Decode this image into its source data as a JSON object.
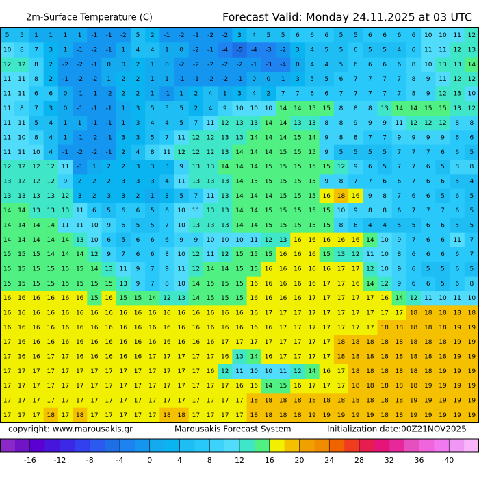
{
  "header": {
    "title": "2m-Surface Temperature (C)",
    "forecast": "Forecast Valid:  Monday 24.11.2025 at 03 UTC"
  },
  "grid": {
    "rows": [
      [
        5,
        5,
        1,
        1,
        1,
        1,
        -1,
        -1,
        -2,
        5,
        2,
        -1,
        -2,
        -1,
        -2,
        -2,
        3,
        4,
        5,
        5,
        6,
        6,
        6,
        5,
        5,
        6,
        6,
        6,
        6,
        10,
        10,
        11,
        12
      ],
      [
        10,
        8,
        7,
        3,
        1,
        -1,
        -2,
        -1,
        1,
        4,
        4,
        1,
        0,
        -2,
        -1,
        -4,
        -5,
        -4,
        -3,
        -2,
        3,
        4,
        5,
        5,
        6,
        5,
        5,
        4,
        6,
        11,
        11,
        12,
        13
      ],
      [
        12,
        12,
        8,
        2,
        -2,
        -2,
        -1,
        0,
        0,
        2,
        1,
        0,
        -2,
        -2,
        -2,
        -2,
        -2,
        -1,
        -3,
        -4,
        0,
        4,
        4,
        5,
        6,
        6,
        6,
        6,
        8,
        10,
        13,
        13,
        14
      ],
      [
        11,
        11,
        8,
        2,
        -1,
        -2,
        -2,
        1,
        2,
        2,
        1,
        1,
        -1,
        -1,
        -2,
        -2,
        -1,
        0,
        0,
        1,
        3,
        5,
        5,
        6,
        7,
        7,
        7,
        7,
        8,
        9,
        11,
        12,
        12
      ],
      [
        11,
        11,
        6,
        6,
        0,
        -1,
        -1,
        -2,
        2,
        2,
        1,
        -1,
        1,
        2,
        4,
        1,
        3,
        4,
        2,
        7,
        7,
        6,
        6,
        7,
        7,
        7,
        7,
        7,
        8,
        9,
        12,
        13,
        10
      ],
      [
        11,
        8,
        7,
        3,
        0,
        -1,
        -1,
        -1,
        1,
        3,
        5,
        5,
        5,
        2,
        4,
        9,
        10,
        10,
        10,
        14,
        14,
        15,
        15,
        8,
        8,
        8,
        13,
        14,
        14,
        15,
        15,
        13,
        12
      ],
      [
        11,
        11,
        5,
        4,
        1,
        1,
        -1,
        -1,
        1,
        3,
        4,
        4,
        5,
        7,
        11,
        12,
        13,
        13,
        14,
        14,
        13,
        13,
        8,
        8,
        9,
        9,
        9,
        11,
        12,
        12,
        12,
        8,
        8
      ],
      [
        11,
        10,
        8,
        4,
        1,
        -1,
        -2,
        -1,
        3,
        3,
        5,
        7,
        11,
        12,
        12,
        13,
        13,
        14,
        14,
        14,
        15,
        14,
        9,
        8,
        8,
        7,
        7,
        9,
        9,
        9,
        9,
        6,
        6
      ],
      [
        11,
        11,
        10,
        4,
        -1,
        -2,
        -2,
        -1,
        2,
        4,
        8,
        11,
        12,
        12,
        12,
        13,
        14,
        14,
        14,
        15,
        15,
        15,
        9,
        5,
        5,
        5,
        5,
        7,
        7,
        7,
        6,
        6,
        5
      ],
      [
        12,
        12,
        12,
        12,
        11,
        -1,
        1,
        2,
        2,
        3,
        3,
        3,
        9,
        13,
        13,
        14,
        14,
        14,
        15,
        15,
        15,
        15,
        15,
        12,
        9,
        6,
        5,
        7,
        7,
        6,
        5,
        8,
        8
      ],
      [
        13,
        12,
        12,
        12,
        9,
        2,
        2,
        2,
        3,
        3,
        3,
        4,
        11,
        13,
        13,
        13,
        14,
        15,
        15,
        15,
        15,
        15,
        9,
        8,
        7,
        7,
        6,
        6,
        7,
        6,
        6,
        5,
        4
      ],
      [
        13,
        13,
        13,
        13,
        12,
        3,
        2,
        3,
        3,
        2,
        1,
        3,
        5,
        7,
        11,
        13,
        14,
        14,
        14,
        15,
        15,
        15,
        16,
        18,
        16,
        9,
        8,
        7,
        6,
        6,
        5,
        6,
        5
      ],
      [
        14,
        14,
        13,
        13,
        13,
        11,
        6,
        5,
        6,
        6,
        5,
        6,
        10,
        11,
        13,
        13,
        14,
        14,
        15,
        15,
        15,
        15,
        15,
        10,
        9,
        8,
        8,
        6,
        7,
        7,
        7,
        6,
        5
      ],
      [
        14,
        14,
        14,
        14,
        11,
        11,
        10,
        9,
        6,
        5,
        5,
        7,
        10,
        13,
        13,
        13,
        14,
        14,
        15,
        15,
        15,
        15,
        15,
        8,
        6,
        4,
        4,
        5,
        5,
        6,
        6,
        5,
        5
      ],
      [
        14,
        14,
        14,
        14,
        14,
        13,
        10,
        6,
        5,
        6,
        6,
        6,
        9,
        9,
        10,
        10,
        10,
        11,
        12,
        13,
        16,
        16,
        16,
        16,
        16,
        14,
        10,
        9,
        7,
        6,
        6,
        11,
        7
      ],
      [
        15,
        15,
        15,
        14,
        14,
        14,
        12,
        9,
        7,
        6,
        6,
        8,
        10,
        12,
        11,
        12,
        15,
        15,
        15,
        16,
        16,
        16,
        15,
        13,
        12,
        11,
        10,
        8,
        6,
        6,
        6,
        6,
        7
      ],
      [
        15,
        15,
        15,
        15,
        15,
        15,
        14,
        13,
        11,
        9,
        7,
        9,
        11,
        12,
        14,
        14,
        15,
        15,
        16,
        16,
        16,
        16,
        16,
        17,
        17,
        12,
        10,
        9,
        6,
        5,
        5,
        6,
        5
      ],
      [
        15,
        15,
        15,
        15,
        15,
        15,
        15,
        15,
        13,
        9,
        7,
        8,
        10,
        14,
        15,
        15,
        15,
        16,
        16,
        16,
        16,
        16,
        17,
        17,
        16,
        14,
        12,
        9,
        6,
        6,
        5,
        6,
        8
      ],
      [
        16,
        16,
        16,
        16,
        16,
        16,
        15,
        16,
        15,
        15,
        14,
        12,
        13,
        14,
        15,
        15,
        15,
        16,
        16,
        16,
        16,
        17,
        17,
        17,
        17,
        17,
        16,
        14,
        12,
        11,
        10,
        11,
        10
      ],
      [
        16,
        16,
        16,
        16,
        16,
        16,
        16,
        16,
        16,
        16,
        16,
        16,
        16,
        16,
        16,
        16,
        16,
        16,
        17,
        17,
        17,
        17,
        17,
        17,
        17,
        17,
        17,
        17,
        18,
        18,
        18,
        18,
        18
      ],
      [
        16,
        16,
        16,
        16,
        16,
        16,
        16,
        16,
        16,
        16,
        16,
        16,
        16,
        16,
        16,
        16,
        16,
        16,
        16,
        17,
        17,
        17,
        17,
        17,
        17,
        17,
        18,
        18,
        18,
        18,
        18,
        19,
        19
      ],
      [
        17,
        16,
        16,
        16,
        16,
        16,
        16,
        16,
        16,
        16,
        16,
        16,
        16,
        16,
        16,
        17,
        17,
        17,
        17,
        17,
        17,
        17,
        17,
        18,
        18,
        18,
        18,
        18,
        18,
        18,
        18,
        19,
        19
      ],
      [
        17,
        16,
        16,
        17,
        17,
        16,
        16,
        16,
        16,
        16,
        17,
        17,
        17,
        17,
        17,
        16,
        13,
        14,
        16,
        17,
        17,
        17,
        17,
        18,
        18,
        18,
        18,
        18,
        18,
        18,
        18,
        19,
        19
      ],
      [
        17,
        17,
        17,
        17,
        17,
        17,
        17,
        17,
        17,
        17,
        17,
        17,
        17,
        17,
        16,
        12,
        11,
        10,
        10,
        11,
        12,
        14,
        16,
        17,
        18,
        18,
        18,
        18,
        18,
        18,
        19,
        19,
        19
      ],
      [
        17,
        17,
        17,
        17,
        17,
        17,
        17,
        17,
        17,
        17,
        17,
        17,
        17,
        17,
        17,
        17,
        16,
        16,
        14,
        15,
        16,
        17,
        17,
        17,
        18,
        18,
        18,
        18,
        18,
        19,
        19,
        19,
        19
      ],
      [
        17,
        17,
        17,
        17,
        17,
        17,
        17,
        17,
        17,
        17,
        17,
        17,
        17,
        17,
        17,
        17,
        17,
        18,
        18,
        18,
        18,
        18,
        18,
        18,
        18,
        18,
        18,
        18,
        19,
        19,
        19,
        19,
        19
      ],
      [
        17,
        17,
        17,
        18,
        17,
        18,
        17,
        17,
        17,
        17,
        17,
        18,
        18,
        17,
        17,
        17,
        17,
        18,
        18,
        18,
        18,
        19,
        19,
        19,
        19,
        19,
        18,
        18,
        19,
        19,
        19,
        19,
        19
      ]
    ]
  },
  "footer": {
    "copyright": "copyright: www.marousakis.gr",
    "system": "Marousakis Forecast System",
    "init": "Initialization date:00Z21NOV2025"
  },
  "colorbar": {
    "lim": [
      -20,
      44
    ],
    "ticks": [
      -16,
      -12,
      -8,
      -4,
      0,
      4,
      8,
      12,
      16,
      20,
      24,
      28,
      32,
      36,
      40
    ],
    "colors": [
      "#8c28c8",
      "#7014c8",
      "#5a00d2",
      "#4616dc",
      "#3c28e6",
      "#3240f0",
      "#2c5af0",
      "#1e6ee6",
      "#1e82f0",
      "#1496f0",
      "#14aaf0",
      "#0ab4f0",
      "#1ebef5",
      "#28c8fa",
      "#3cd2fa",
      "#50dcfa",
      "#40e6c8",
      "#50f082",
      "#f0f000",
      "#f5c000",
      "#f0a000",
      "#f08c00",
      "#f06400",
      "#f03c1e",
      "#e61e50",
      "#e61478",
      "#e6289b",
      "#e650be",
      "#f064dc",
      "#f078f0",
      "#f096f5",
      "#fab4fa"
    ]
  }
}
